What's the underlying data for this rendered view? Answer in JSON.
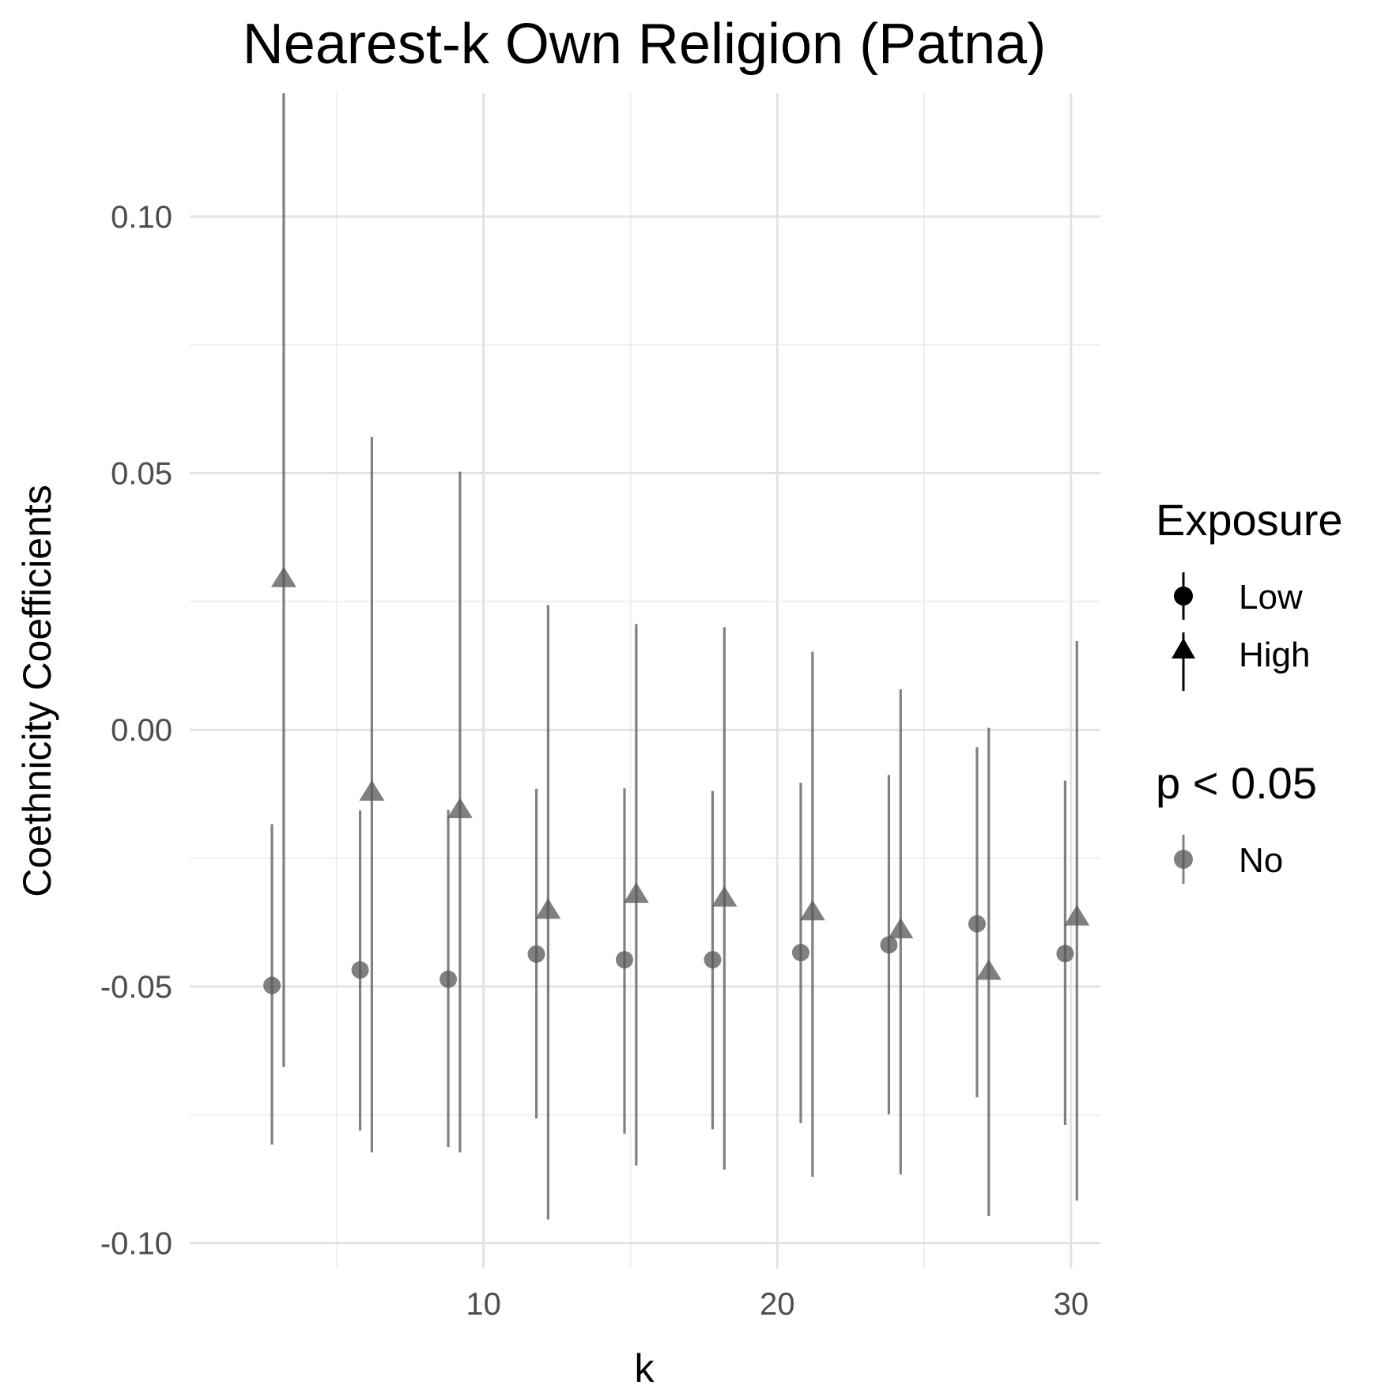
{
  "chart_data": {
    "type": "scatter",
    "title": "Nearest-k Own Religion (Patna)",
    "xlabel": "k",
    "ylabel": "Coethnicity Coefficients",
    "xlim": [
      0,
      31
    ],
    "ylim": [
      -0.105,
      0.124
    ],
    "x_ticks": [
      10,
      20,
      30
    ],
    "y_ticks": [
      -0.1,
      -0.05,
      0.0,
      0.05,
      0.1
    ],
    "x_tick_labels": [
      "10",
      "20",
      "30"
    ],
    "y_tick_labels": [
      "-0.10",
      "-0.05",
      "0.00",
      "0.05",
      "0.10"
    ],
    "grid": true,
    "legend_position": "right",
    "point_color": "#555555",
    "point_alpha": 0.75,
    "series": [
      {
        "name": "Low",
        "shape": "circle",
        "x": [
          2.8,
          5.8,
          8.8,
          11.8,
          14.8,
          17.8,
          20.8,
          23.8,
          26.8,
          29.8
        ],
        "estimate": [
          -0.0498,
          -0.0468,
          -0.0486,
          -0.0437,
          -0.0448,
          -0.0448,
          -0.0434,
          -0.0419,
          -0.0378,
          -0.0436
        ],
        "lower": [
          -0.0808,
          -0.0781,
          -0.0813,
          -0.0757,
          -0.0787,
          -0.0778,
          -0.0766,
          -0.0749,
          -0.0716,
          -0.077
        ],
        "upper": [
          -0.0184,
          -0.0157,
          -0.0156,
          -0.0115,
          -0.0114,
          -0.0119,
          -0.0103,
          -0.0088,
          -0.0034,
          -0.0099
        ]
      },
      {
        "name": "High",
        "shape": "triangle",
        "x": [
          3.2,
          6.2,
          9.2,
          12.2,
          15.2,
          18.2,
          21.2,
          24.2,
          27.2,
          30.2
        ],
        "estimate": [
          0.0293,
          -0.0123,
          -0.0157,
          -0.0353,
          -0.0322,
          -0.0329,
          -0.0356,
          -0.0391,
          -0.0472,
          -0.0366
        ],
        "lower": [
          -0.0657,
          -0.0823,
          -0.0823,
          -0.0954,
          -0.0849,
          -0.0857,
          -0.0871,
          -0.0866,
          -0.0947,
          -0.0917
        ],
        "upper": [
          0.124,
          0.057,
          0.0503,
          0.0243,
          0.0206,
          0.02,
          0.0152,
          0.0079,
          0.0004,
          0.0173
        ]
      }
    ]
  },
  "legend": {
    "exposure_title": "Exposure",
    "exposure_items": [
      {
        "label": "Low",
        "shape": "circle"
      },
      {
        "label": "High",
        "shape": "triangle"
      }
    ],
    "significance_title": "p < 0.05",
    "significance_items": [
      {
        "label": "No"
      }
    ]
  }
}
